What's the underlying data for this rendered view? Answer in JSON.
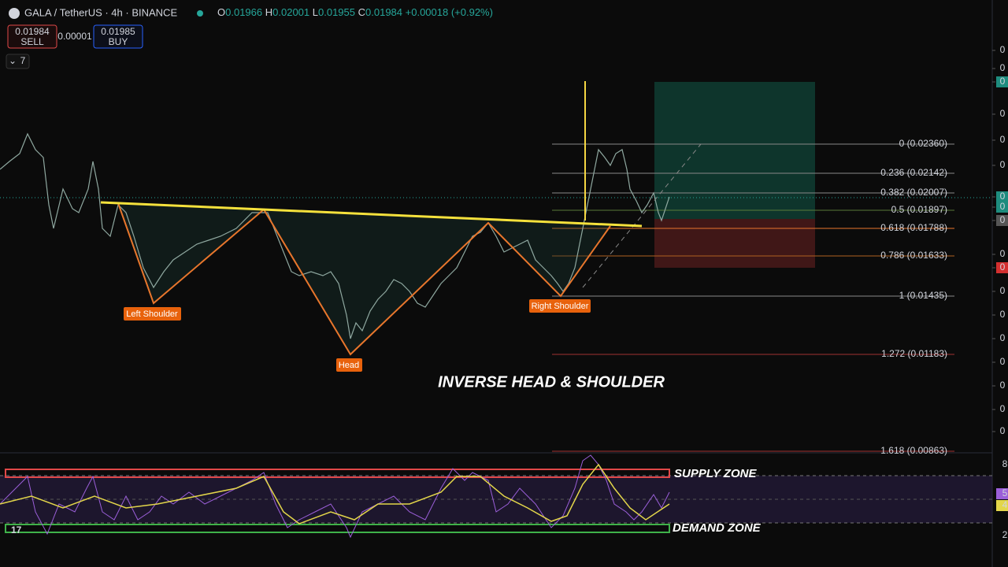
{
  "header": {
    "symbol": "GALA / TetherUS · 4h · BINANCE",
    "ohlc": [
      {
        "label": "O",
        "value": "0.01966"
      },
      {
        "label": "H",
        "value": "0.02001"
      },
      {
        "label": "L",
        "value": "0.01955"
      },
      {
        "label": "C",
        "value": "0.01984"
      }
    ],
    "change": "+0.00018 (+0.92%)"
  },
  "trade": {
    "sell_price": "0.01984",
    "sell_label": "SELL",
    "spread": "0.00001",
    "buy_price": "0.01985",
    "buy_label": "BUY"
  },
  "indicators_toggle": "7",
  "fib_levels": [
    "0 (0.02360)",
    "0.236 (0.02142)",
    "0.382 (0.02007)",
    "0.5 (0.01897)",
    "0.618 (0.01788)",
    "0.786 (0.01633)",
    "1 (0.01435)",
    "1.272 (0.01183)",
    "1.618 (0.00863)"
  ],
  "pattern_labels": {
    "left_shoulder": "Left Shoulder",
    "head": "Head",
    "right_shoulder": "Right Shoulder"
  },
  "title": "INVERSE HEAD & SHOULDER",
  "zones": {
    "supply": "SUPPLY ZONE",
    "demand": "DEMAND ZONE"
  },
  "price_axis": [
    "0",
    "0",
    "0",
    "0",
    "0",
    "0",
    "0",
    "0",
    "0",
    "0",
    "0",
    "0",
    "0",
    "0",
    "0",
    "0",
    "0",
    "0"
  ],
  "indicator_axis": [
    "8",
    "5",
    "4",
    "2"
  ]
}
